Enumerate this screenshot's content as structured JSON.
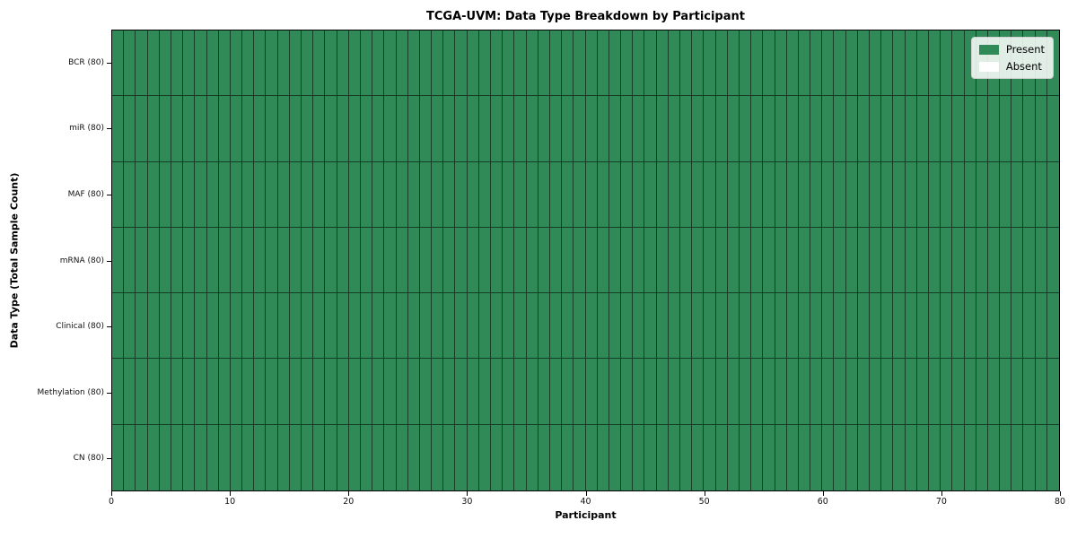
{
  "chart_data": {
    "type": "heatmap",
    "title": "TCGA-UVM: Data Type Breakdown by Participant",
    "xlabel": "Participant",
    "ylabel": "Data Type (Total Sample Count)",
    "x_range": [
      0,
      80
    ],
    "x_ticks": [
      0,
      10,
      20,
      30,
      40,
      50,
      60,
      70,
      80
    ],
    "n_participants": 80,
    "rows": [
      {
        "label": "BCR (80)",
        "present_count": 80,
        "absent_count": 0
      },
      {
        "label": "miR (80)",
        "present_count": 80,
        "absent_count": 0
      },
      {
        "label": "MAF (80)",
        "present_count": 80,
        "absent_count": 0
      },
      {
        "label": "mRNA (80)",
        "present_count": 80,
        "absent_count": 0
      },
      {
        "label": "Clinical (80)",
        "present_count": 80,
        "absent_count": 0
      },
      {
        "label": "Methylation (80)",
        "present_count": 80,
        "absent_count": 0
      },
      {
        "label": "CN (80)",
        "present_count": 80,
        "absent_count": 0
      }
    ],
    "legend": {
      "position": "upper right",
      "entries": [
        {
          "label": "Present",
          "color": "#2f8a57"
        },
        {
          "label": "Absent",
          "color": "#ffffff"
        }
      ]
    },
    "colors": {
      "present": "#2f8a57",
      "absent": "#ffffff",
      "cell_border": "rgba(0,0,0,0.55)",
      "axis": "#000000"
    },
    "grid": "cell-borders",
    "legend_on": true
  }
}
